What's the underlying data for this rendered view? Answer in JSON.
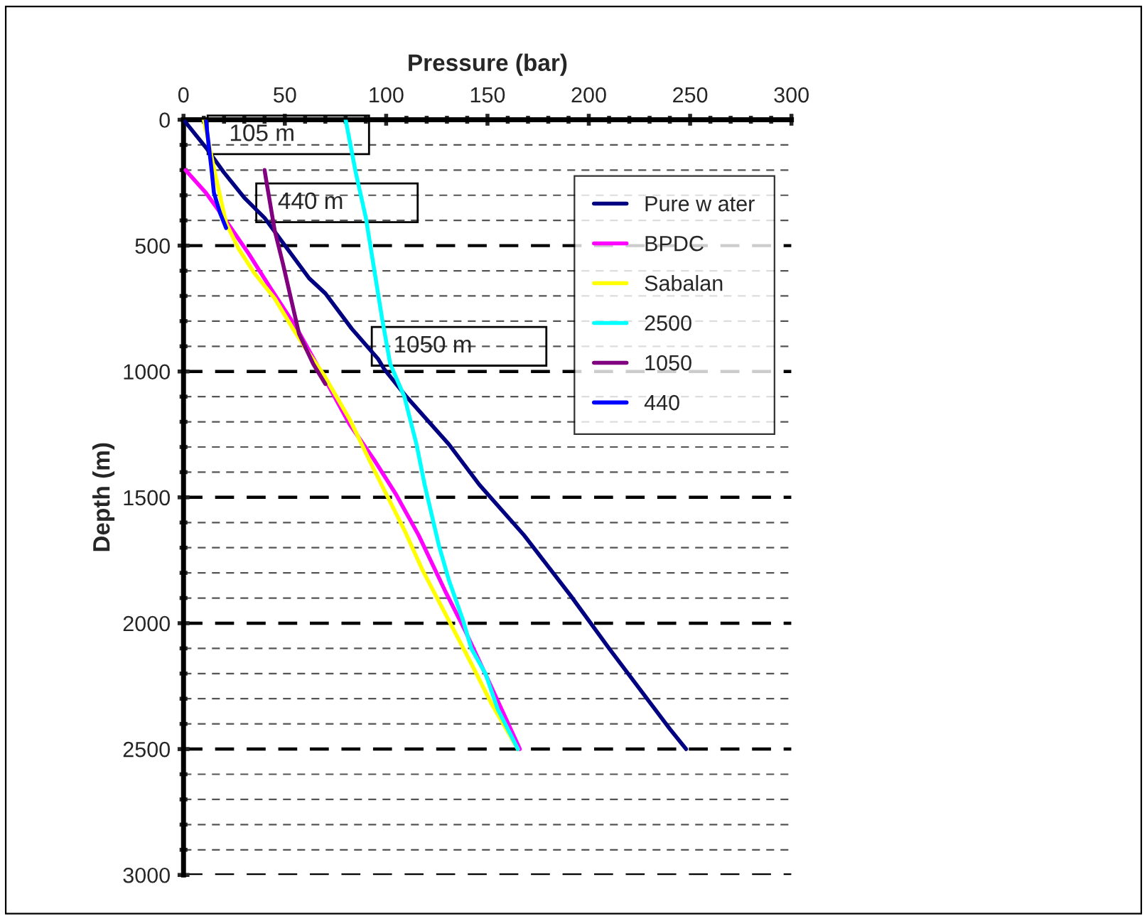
{
  "chart_data": {
    "type": "line",
    "xlabel": "Pressure (bar)",
    "ylabel": "Depth (m)",
    "xlim": [
      0,
      300
    ],
    "xticks": [
      0,
      50,
      100,
      150,
      200,
      250,
      300
    ],
    "ylim": [
      3000,
      0
    ],
    "yticks": [
      0,
      500,
      1000,
      1500,
      2000,
      2500,
      3000
    ],
    "grid": "y",
    "legend": "top right",
    "line_style": "solid",
    "marker": "none",
    "annotations": [
      "105 m",
      "440 m",
      "1050 m"
    ],
    "series": [
      {
        "name": "Pure w ater",
        "color": "#000080",
        "x": [
          0,
          11,
          20,
          30,
          40,
          51,
          62,
          70,
          83,
          96,
          99,
          110,
          131,
          146,
          168,
          191,
          210,
          240,
          248
        ],
        "values": [
          0,
          110,
          210,
          310,
          390,
          510,
          630,
          690,
          830,
          950,
          990,
          1100,
          1290,
          1450,
          1650,
          1890,
          2100,
          2420,
          2500
        ]
      },
      {
        "name": "BPDC",
        "color": "#ff00ff",
        "x": [
          1,
          11,
          20,
          32,
          43,
          56,
          67,
          82,
          94,
          105,
          116,
          129,
          139,
          150,
          166
        ],
        "values": [
          200,
          290,
          390,
          530,
          670,
          830,
          990,
          1210,
          1350,
          1490,
          1650,
          1870,
          2030,
          2220,
          2500
        ]
      },
      {
        "name": "Sabalan",
        "color": "#ffff00",
        "x": [
          10,
          16,
          21,
          27,
          35,
          45,
          54,
          62,
          69,
          82,
          94,
          109,
          118,
          131,
          142,
          152,
          165
        ],
        "values": [
          0,
          230,
          410,
          510,
          610,
          710,
          830,
          930,
          1010,
          1190,
          1390,
          1630,
          1790,
          1990,
          2160,
          2320,
          2500
        ]
      },
      {
        "name": "2500",
        "color": "#00ffff",
        "x": [
          80,
          85,
          90,
          94,
          98,
          102,
          109,
          115,
          119,
          126,
          131,
          138,
          142,
          149,
          155,
          165
        ],
        "values": [
          0,
          210,
          390,
          590,
          790,
          970,
          1100,
          1290,
          1450,
          1690,
          1830,
          1990,
          2100,
          2200,
          2340,
          2500
        ]
      },
      {
        "name": "1050",
        "color": "#800080",
        "x": [
          40,
          41,
          45,
          49,
          53,
          57,
          64,
          70
        ],
        "values": [
          200,
          250,
          440,
          570,
          710,
          850,
          970,
          1050
        ]
      },
      {
        "name": "440",
        "color": "#0000ff",
        "x": [
          11,
          12,
          14,
          15,
          18,
          21
        ],
        "values": [
          0,
          70,
          210,
          290,
          370,
          430
        ]
      }
    ]
  }
}
